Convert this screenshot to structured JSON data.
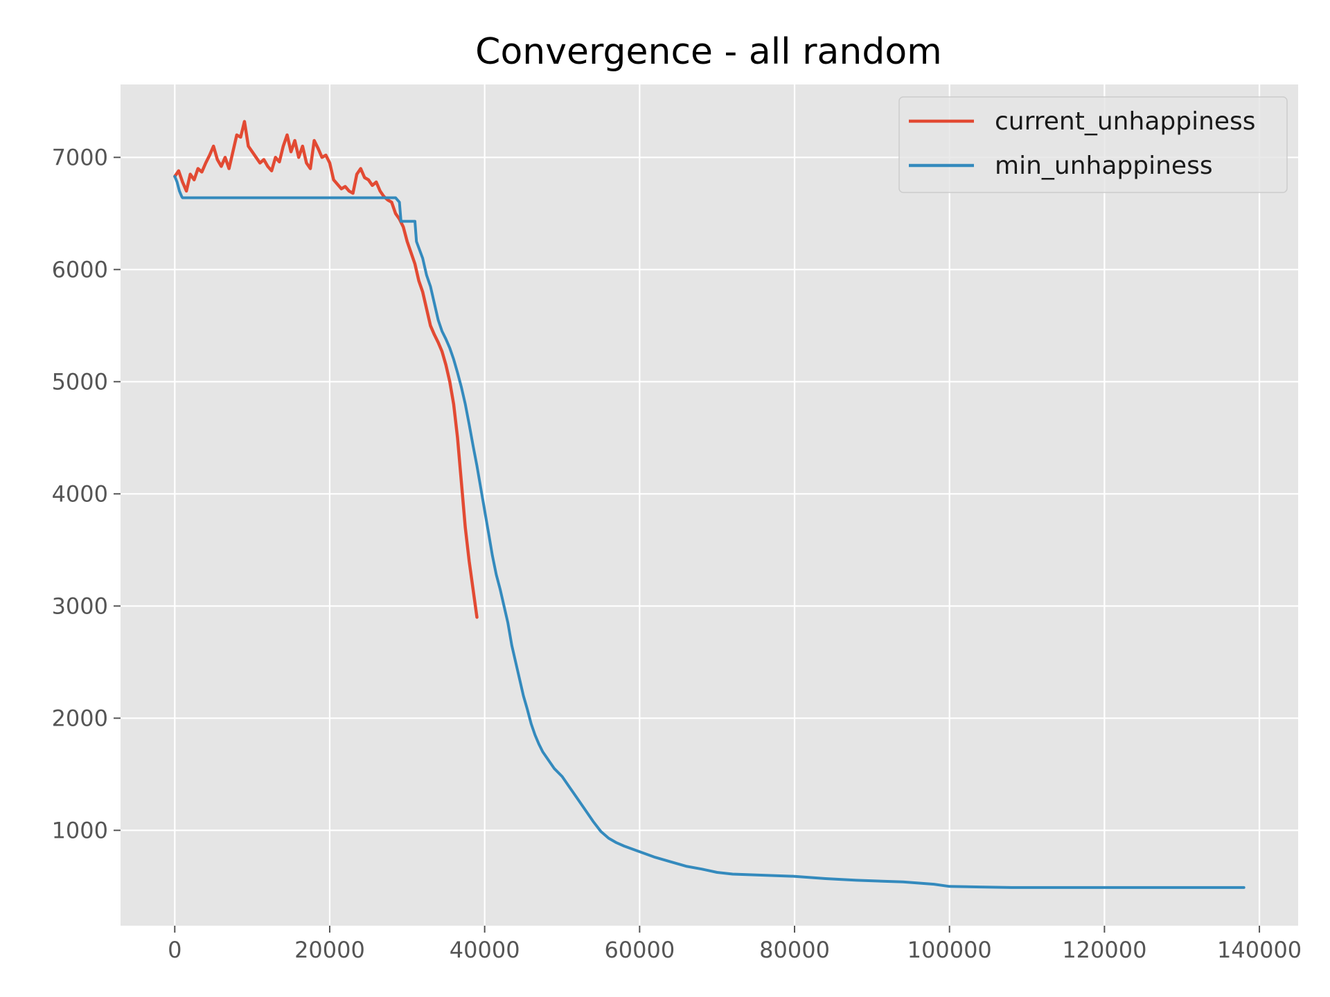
{
  "chart_data": {
    "type": "line",
    "title": "Convergence - all random",
    "xlabel": "",
    "ylabel": "",
    "xlim": [
      -7000,
      145000
    ],
    "ylim": [
      150,
      7650
    ],
    "xticks": [
      0,
      20000,
      40000,
      60000,
      80000,
      100000,
      120000,
      140000
    ],
    "xtick_labels": [
      "0",
      "20000",
      "40000",
      "60000",
      "80000",
      "100000",
      "120000",
      "140000"
    ],
    "yticks": [
      1000,
      2000,
      3000,
      4000,
      5000,
      6000,
      7000
    ],
    "ytick_labels": [
      "1000",
      "2000",
      "3000",
      "4000",
      "5000",
      "6000",
      "7000"
    ],
    "grid": true,
    "legend_position": "top-right",
    "background": "#e5e5e5",
    "grid_color": "#ffffff",
    "series": [
      {
        "name": "current_unhappiness",
        "color": "#e24a33",
        "x": [
          0,
          500,
          1000,
          1500,
          2000,
          2500,
          3000,
          3500,
          4000,
          4500,
          5000,
          5500,
          6000,
          6500,
          7000,
          7500,
          8000,
          8500,
          9000,
          9500,
          10000,
          10500,
          11000,
          11500,
          12000,
          12500,
          13000,
          13500,
          14000,
          14500,
          15000,
          15500,
          16000,
          16500,
          17000,
          17500,
          18000,
          18500,
          19000,
          19500,
          20000,
          20500,
          21000,
          21500,
          22000,
          22500,
          23000,
          23500,
          24000,
          24500,
          25000,
          25500,
          26000,
          26500,
          27000,
          27500,
          28000,
          28500,
          29000,
          29500,
          30000,
          30500,
          31000,
          31500,
          32000,
          32500,
          33000,
          33500,
          34000,
          34500,
          35000,
          35500,
          36000,
          36500,
          37000,
          37500,
          38000,
          38500,
          39000
        ],
        "y": [
          6830,
          6880,
          6780,
          6700,
          6850,
          6800,
          6900,
          6870,
          6950,
          7020,
          7100,
          6980,
          6920,
          7000,
          6900,
          7050,
          7200,
          7180,
          7320,
          7100,
          7050,
          7000,
          6950,
          6980,
          6920,
          6880,
          7000,
          6960,
          7100,
          7200,
          7050,
          7150,
          7000,
          7100,
          6950,
          6900,
          7150,
          7080,
          7000,
          7020,
          6950,
          6800,
          6760,
          6720,
          6740,
          6700,
          6680,
          6850,
          6900,
          6820,
          6800,
          6750,
          6780,
          6700,
          6650,
          6620,
          6600,
          6500,
          6450,
          6380,
          6250,
          6150,
          6050,
          5900,
          5800,
          5650,
          5500,
          5420,
          5350,
          5270,
          5150,
          5000,
          4800,
          4500,
          4100,
          3700,
          3400,
          3150,
          2900
        ]
      },
      {
        "name": "min_unhappiness",
        "color": "#348abd",
        "x": [
          0,
          300,
          600,
          900,
          1000,
          28500,
          29000,
          29200,
          31000,
          31200,
          32000,
          32500,
          33000,
          33500,
          34000,
          34500,
          35000,
          35500,
          36000,
          36500,
          37000,
          37500,
          38000,
          38500,
          39000,
          39500,
          40000,
          40500,
          41000,
          41500,
          42000,
          42500,
          43000,
          43500,
          44000,
          44500,
          45000,
          45500,
          46000,
          46500,
          47000,
          47500,
          48000,
          48500,
          49000,
          50000,
          51000,
          52000,
          53000,
          54000,
          55000,
          56000,
          57000,
          58000,
          60000,
          62000,
          64000,
          66000,
          68000,
          70000,
          72000,
          76000,
          80000,
          84000,
          88000,
          92000,
          94000,
          98000,
          100000,
          104000,
          108000,
          120000,
          130000,
          138000
        ],
        "y": [
          6830,
          6780,
          6700,
          6650,
          6640,
          6640,
          6600,
          6430,
          6430,
          6250,
          6100,
          5950,
          5850,
          5700,
          5550,
          5450,
          5380,
          5300,
          5200,
          5080,
          4950,
          4800,
          4620,
          4430,
          4250,
          4050,
          3850,
          3650,
          3450,
          3280,
          3150,
          3000,
          2850,
          2650,
          2500,
          2350,
          2200,
          2080,
          1950,
          1850,
          1770,
          1700,
          1650,
          1600,
          1550,
          1480,
          1380,
          1280,
          1180,
          1080,
          990,
          930,
          890,
          860,
          810,
          760,
          720,
          680,
          655,
          625,
          610,
          600,
          590,
          570,
          555,
          545,
          540,
          520,
          500,
          495,
          490,
          490,
          490,
          490
        ]
      }
    ]
  }
}
